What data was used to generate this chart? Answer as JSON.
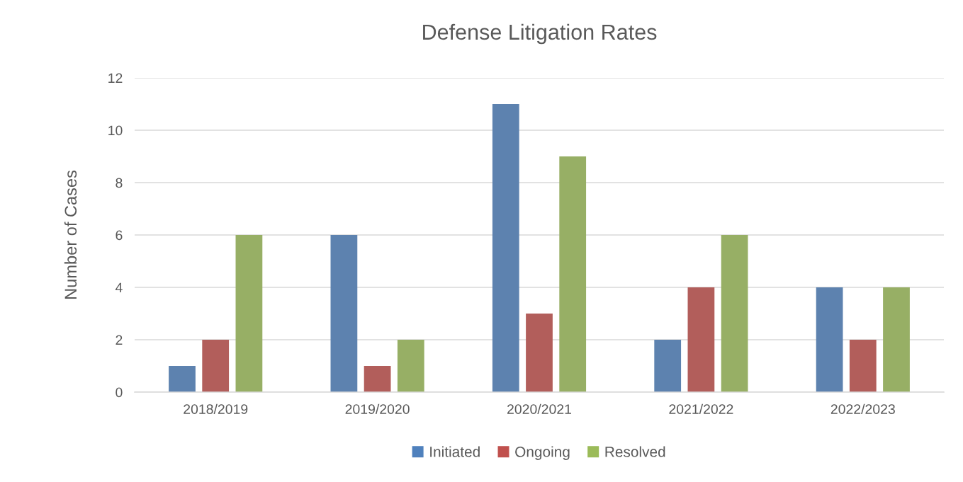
{
  "chart_data": {
    "type": "bar",
    "title": "Defense Litigation Rates",
    "ylabel": "Number of Cases",
    "categories": [
      "2018/2019",
      "2019/2020",
      "2020/2021",
      "2021/2022",
      "2022/2023"
    ],
    "series": [
      {
        "name": "Initiated",
        "color": "#4f81bd",
        "values": [
          1,
          6,
          11,
          2,
          4
        ]
      },
      {
        "name": "Ongoing",
        "color": "#c0504d",
        "values": [
          2,
          1,
          3,
          4,
          2
        ]
      },
      {
        "name": "Resolved",
        "color": "#9bbb59",
        "values": [
          6,
          2,
          9,
          6,
          4
        ]
      }
    ],
    "ylim": [
      0,
      12
    ],
    "yticks": [
      0,
      2,
      4,
      6,
      8,
      10,
      12
    ],
    "grid": "y",
    "legend": "bottom"
  }
}
